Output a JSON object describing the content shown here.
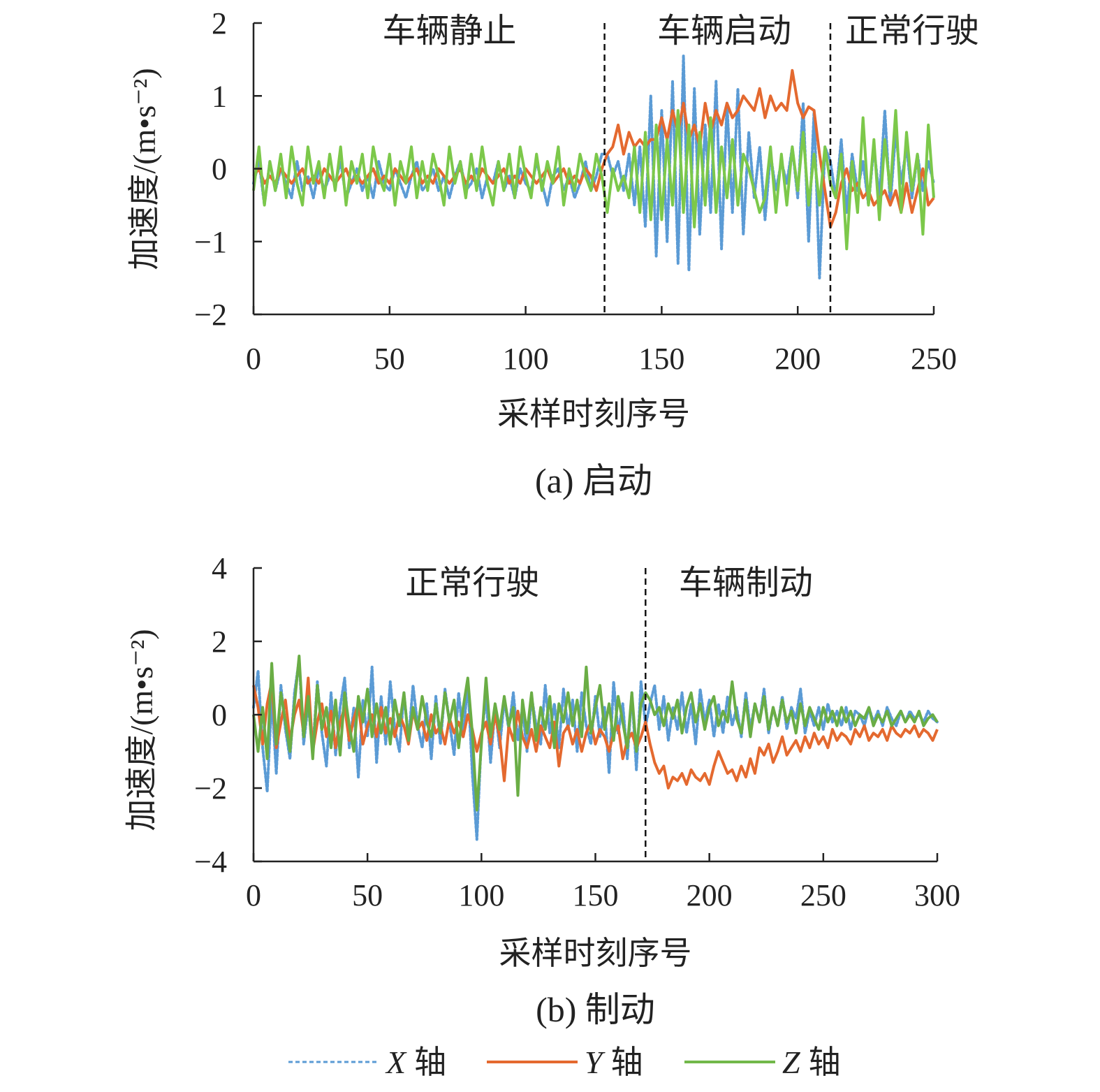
{
  "legend": [
    {
      "name": "X",
      "suffix": "轴",
      "color": "#5b9bd5",
      "dash": true
    },
    {
      "name": "Y",
      "suffix": "轴",
      "color": "#e4692f",
      "dash": false
    },
    {
      "name": "Z",
      "suffix": "轴",
      "color": "#72b84a",
      "dash": false
    }
  ],
  "chart_data": [
    {
      "type": "line",
      "title": "(a) 启动",
      "xlabel": "采样时刻序号",
      "ylabel": "加速度/(m•s⁻²)",
      "xlim": [
        0,
        250
      ],
      "ylim": [
        -2,
        2
      ],
      "xticks": [
        "0",
        "50",
        "100",
        "150",
        "200",
        "250"
      ],
      "yticks": [
        "2",
        "1",
        "0",
        "−1",
        "−2"
      ],
      "x_start": 0,
      "x_step": 2,
      "dividers": [
        129,
        212
      ],
      "phases": [
        {
          "label": "车辆静止",
          "center": 72
        },
        {
          "label": "车辆启动",
          "center": 173
        },
        {
          "label": "正常行驶",
          "center": 242
        }
      ],
      "series": [
        {
          "name": "X 轴",
          "color": "#5b9bd5",
          "values": [
            -0.2,
            0.1,
            -0.5,
            0.1,
            -0.3,
            0,
            -0.2,
            -0.4,
            0.1,
            -0.3,
            -0.1,
            -0.4,
            0,
            -0.3,
            -0.1,
            -0.2,
            0.1,
            -0.4,
            -0.2,
            0,
            -0.3,
            -0.1,
            -0.4,
            0.1,
            -0.2,
            -0.3,
            0,
            -0.2,
            -0.4,
            -0.1,
            0.1,
            -0.3,
            -0.2,
            0,
            -0.3,
            -0.1,
            -0.4,
            -0.1,
            0.1,
            -0.3,
            -0.2,
            0,
            -0.4,
            -0.1,
            -0.2,
            0.1,
            -0.3,
            -0.1,
            -0.4,
            0,
            -0.2,
            -0.3,
            0.1,
            -0.2,
            -0.5,
            -0.1,
            0,
            -0.3,
            -0.1,
            -0.4,
            -0.2,
            0.1,
            -0.3,
            -0.1,
            0.2,
            0.2,
            -0.1,
            0.1,
            -0.3,
            0.2,
            -0.5,
            0.3,
            -0.8,
            1.0,
            -1.2,
            0.8,
            -1.0,
            1.2,
            -1.3,
            1.55,
            -1.4,
            1.1,
            -0.9,
            0.6,
            -0.6,
            1.2,
            -1.1,
            0.9,
            -0.6,
            1.1,
            -0.9,
            0.5,
            -0.4,
            0.3,
            -0.7,
            0.2,
            -0.3,
            0.1,
            -0.2,
            0.3,
            -0.4,
            0.9,
            -1.0,
            0.8,
            -1.5,
            0.3,
            0.1,
            -0.4,
            0.4,
            -0.6,
            0.2,
            -0.3,
            0.1,
            -0.5,
            0.3,
            -0.4,
            0.8,
            -0.5,
            0.5,
            -0.2,
            0.3,
            -0.4,
            0.2,
            -0.3,
            0.1,
            -0.2
          ]
        },
        {
          "name": "Y 轴",
          "color": "#e4692f",
          "values": [
            -0.1,
            0,
            -0.2,
            -0.1,
            -0.2,
            0,
            -0.1,
            -0.2,
            -0.1,
            0,
            -0.2,
            -0.1,
            -0.2,
            0,
            -0.1,
            -0.2,
            -0.1,
            0,
            -0.2,
            -0.1,
            -0.2,
            -0.1,
            0,
            -0.2,
            -0.1,
            -0.2,
            0,
            -0.1,
            -0.2,
            -0.1,
            0,
            -0.2,
            -0.1,
            -0.2,
            0,
            -0.1,
            -0.2,
            -0.1,
            0,
            -0.2,
            -0.1,
            -0.2,
            0,
            -0.1,
            -0.2,
            -0.1,
            0,
            -0.2,
            -0.1,
            -0.2,
            0,
            -0.1,
            -0.2,
            -0.1,
            0,
            -0.2,
            -0.1,
            0,
            -0.2,
            -0.1,
            -0.2,
            0,
            -0.1,
            -0.3,
            0,
            0.2,
            0.3,
            0.6,
            0.2,
            0.5,
            0.3,
            0.4,
            0.3,
            0.4,
            0.4,
            0.7,
            0.4,
            0.8,
            0.5,
            0.9,
            0.4,
            0.6,
            0.3,
            0.9,
            0.5,
            0.8,
            0.6,
            0.9,
            0.7,
            0.8,
            1.0,
            0.9,
            0.8,
            1.1,
            0.7,
            1.0,
            0.8,
            0.9,
            0.8,
            1.35,
            0.9,
            0.7,
            0.85,
            0.8,
            0.2,
            -0.3,
            -0.8,
            -0.6,
            -0.2,
            0,
            -0.3,
            -0.2,
            -0.4,
            -0.3,
            -0.5,
            -0.4,
            -0.3,
            -0.5,
            -0.3,
            -0.6,
            -0.2,
            -0.6,
            -0.3,
            0,
            -0.5,
            -0.4
          ]
        },
        {
          "name": "Z 轴",
          "color": "#7cc84a",
          "values": [
            -0.3,
            0.3,
            -0.5,
            0.1,
            -0.3,
            0.2,
            -0.4,
            0.3,
            -0.2,
            -0.5,
            0.3,
            -0.2,
            0.1,
            -0.4,
            0.2,
            -0.3,
            0.3,
            -0.5,
            0.1,
            -0.2,
            0.2,
            -0.4,
            0.3,
            -0.1,
            -0.3,
            0.2,
            -0.5,
            0.1,
            -0.2,
            0.3,
            -0.4,
            0.1,
            -0.3,
            0.2,
            -0.1,
            -0.5,
            0.3,
            -0.2,
            0.1,
            -0.4,
            0.2,
            -0.3,
            0.3,
            -0.2,
            -0.5,
            0.1,
            -0.3,
            0.2,
            -0.4,
            0.3,
            -0.1,
            -0.4,
            0.2,
            -0.3,
            0.1,
            -0.2,
            0.3,
            -0.5,
            0,
            -0.3,
            0.2,
            -0.1,
            -0.3,
            0.2,
            -0.1,
            -0.6,
            0,
            -0.3,
            -0.1,
            -0.4,
            0.3,
            -0.6,
            0.5,
            -0.7,
            0.6,
            -0.7,
            0.4,
            -0.5,
            0.8,
            -0.6,
            0.6,
            -0.8,
            0.5,
            -0.5,
            0.7,
            -0.6,
            0.3,
            -0.4,
            0.4,
            -0.5,
            0.2,
            0,
            -0.3,
            -0.6,
            -0.4,
            0.3,
            -0.6,
            0.2,
            -0.5,
            0.3,
            -0.3,
            0.5,
            -0.5,
            0.2,
            -0.5,
            0.3,
            -0.2,
            -0.4,
            0.2,
            -1.1,
            0.1,
            -0.6,
            0.7,
            -0.5,
            0.4,
            -0.7,
            0.4,
            -0.3,
            0.8,
            -0.6,
            0.5,
            -0.3,
            0.2,
            -0.9,
            0.6,
            -0.4
          ]
        }
      ]
    },
    {
      "type": "line",
      "title": "(b) 制动",
      "xlabel": "采样时刻序号",
      "ylabel": "加速度/(m•s⁻²)",
      "xlim": [
        0,
        300
      ],
      "ylim": [
        -4,
        4
      ],
      "xticks": [
        "0",
        "50",
        "100",
        "150",
        "200",
        "250",
        "300"
      ],
      "yticks": [
        "4",
        "2",
        "0",
        "−2",
        "−4"
      ],
      "x_start": 0,
      "x_step": 2,
      "dividers": [
        172
      ],
      "phases": [
        {
          "label": "正常行驶",
          "center": 96
        },
        {
          "label": "车辆制动",
          "center": 216
        }
      ],
      "series": [
        {
          "name": "X 轴",
          "color": "#5b9bd5",
          "values": [
            0.2,
            1.2,
            -0.9,
            -2.1,
            0.5,
            -1.6,
            0.8,
            -0.4,
            -1.2,
            0.6,
            1.5,
            -0.8,
            0.3,
            -1.0,
            0.9,
            -0.5,
            -1.4,
            0.6,
            -1.1,
            0.2,
            1.0,
            -0.9,
            0.2,
            -1.7,
            0.4,
            -0.6,
            1.3,
            -1.3,
            0.5,
            -0.8,
            0.9,
            -0.4,
            -1.0,
            0.6,
            -0.7,
            0.8,
            -0.3,
            -0.9,
            0.3,
            -1.2,
            0.5,
            -0.8,
            0.7,
            -0.2,
            -1.1,
            0.6,
            -0.6,
            0.9,
            -1.6,
            -3.4,
            -0.6,
            0.5,
            -1.3,
            0.2,
            -0.9,
            0.4,
            -0.4,
            0.6,
            -0.7,
            0.2,
            -1.0,
            0.5,
            -0.3,
            -0.8,
            0.8,
            -0.5,
            0.3,
            -0.9,
            0.7,
            -0.4,
            0.4,
            -1.0,
            0.6,
            -0.3,
            -0.8,
            0.5,
            -0.6,
            0.2,
            -1.6,
            0.9,
            -0.5,
            0.3,
            -1.2,
            0.6,
            -1.5,
            0.9,
            -0.3,
            0.3,
            0.8,
            -0.4,
            0.5,
            -0.7,
            0.2,
            -0.4,
            0.6,
            -0.5,
            0.3,
            -0.8,
            0.7,
            -0.2,
            0.4,
            -0.6,
            0.3,
            -0.5,
            0.5,
            -0.3,
            0.2,
            -0.6,
            0.6,
            -0.4,
            0.3,
            -0.2,
            0.7,
            -0.5,
            0.2,
            -0.3,
            0.5,
            -0.4,
            0.2,
            -0.1,
            0.7,
            -0.5,
            0.1,
            -0.3,
            0.2,
            -0.4,
            0.3,
            -0.2,
            0.1,
            -0.3,
            0.2,
            -0.4,
            0.1,
            0,
            -0.3,
            0.2,
            -0.2,
            0.1,
            -0.3,
            0.2,
            -0.1,
            -0.3,
            0.1,
            -0.2,
            0.1,
            -0.1,
            0,
            -0.2,
            0.1,
            -0.1,
            -0.2
          ]
        },
        {
          "name": "Y 轴",
          "color": "#e4692f",
          "values": [
            0.8,
            0.2,
            -0.8,
            0.3,
            0.9,
            -0.9,
            -0.2,
            0.4,
            -0.7,
            0,
            0.4,
            -0.5,
            1.0,
            -1.0,
            -0.2,
            0.3,
            -0.6,
            0.1,
            -0.9,
            -0.2,
            0.2,
            -0.7,
            -0.1,
            0.3,
            -0.8,
            -0.3,
            0,
            -0.6,
            0.2,
            -0.5,
            -0.1,
            -0.6,
            0,
            -0.3,
            -0.8,
            0.1,
            -0.4,
            -0.2,
            -0.7,
            0,
            -0.5,
            -0.3,
            -0.8,
            -0.1,
            -0.5,
            -0.2,
            -0.6,
            0,
            -0.4,
            -1.0,
            -0.5,
            -0.2,
            -0.8,
            0,
            -0.6,
            -1.8,
            -0.3,
            -0.7,
            0.1,
            -0.6,
            -0.9,
            -0.4,
            -1.0,
            -0.3,
            -0.6,
            -0.9,
            -0.2,
            -1.4,
            -0.5,
            -0.3,
            -0.8,
            -0.4,
            -1.0,
            -0.5,
            -0.2,
            -0.8,
            -0.4,
            -0.6,
            -1.0,
            -0.5,
            -0.3,
            -1.2,
            -0.7,
            -0.5,
            -0.9,
            -0.6,
            -0.2,
            -0.8,
            -1.3,
            -1.6,
            -1.4,
            -2.0,
            -1.7,
            -1.8,
            -1.6,
            -1.9,
            -1.5,
            -1.7,
            -1.8,
            -1.6,
            -1.9,
            -1.4,
            -1.0,
            -1.3,
            -1.6,
            -1.5,
            -1.8,
            -1.4,
            -1.7,
            -1.2,
            -1.6,
            -0.9,
            -1.1,
            -0.8,
            -1.3,
            -1.0,
            -0.6,
            -1.1,
            -0.9,
            -0.7,
            -1.0,
            -0.6,
            -0.9,
            -0.5,
            -0.8,
            -0.6,
            -0.9,
            -0.4,
            -0.7,
            -0.5,
            -0.6,
            -0.8,
            -0.4,
            -0.6,
            -0.3,
            -0.7,
            -0.5,
            -0.6,
            -0.4,
            -0.7,
            -0.3,
            -0.5,
            -0.6,
            -0.4,
            -0.5,
            -0.3,
            -0.6,
            -0.4,
            -0.5,
            -0.7,
            -0.4
          ]
        },
        {
          "name": "Z 轴",
          "color": "#6aad45",
          "values": [
            0,
            -1.0,
            0.2,
            -1.2,
            1.4,
            -0.8,
            0.6,
            -0.2,
            -1.0,
            0.3,
            1.6,
            -0.6,
            0.5,
            -1.2,
            0.8,
            -0.4,
            0.2,
            -0.9,
            0.4,
            -1.1,
            0.6,
            -0.3,
            -1.0,
            0.5,
            -0.2,
            0.7,
            -0.6,
            0.3,
            -0.5,
            0.2,
            -0.8,
            0.4,
            -0.3,
            0.6,
            -0.7,
            0.2,
            -0.4,
            0.5,
            -0.2,
            -0.6,
            0.3,
            -0.5,
            0.6,
            -0.2,
            0.4,
            -0.9,
            0.2,
            1.0,
            -0.5,
            -2.6,
            -0.8,
            1.0,
            -0.6,
            0.3,
            -0.4,
            0.5,
            -0.3,
            0.2,
            -2.2,
            0.4,
            -0.5,
            0.6,
            -0.7,
            0.2,
            -0.4,
            0.5,
            -0.9,
            0.3,
            -0.2,
            0.6,
            -0.3,
            0.4,
            -0.6,
            1.3,
            -0.5,
            0.2,
            0.8,
            -0.4,
            0.3,
            -0.7,
            0.5,
            -0.2,
            -0.9,
            0.6,
            -1.0,
            0.3,
            0.6,
            0.4,
            0,
            0.2,
            -0.3,
            0.3,
            -0.1,
            0.4,
            -0.5,
            0.2,
            0.6,
            -0.2,
            0.3,
            -0.4,
            0.2,
            0.5,
            -0.3,
            0.1,
            -0.2,
            0.9,
            -0.1,
            -0.5,
            0.4,
            -0.6,
            0.3,
            -0.2,
            0.5,
            -0.4,
            0.2,
            -0.3,
            0.4,
            -0.2,
            0.1,
            -0.5,
            0.3,
            -0.3,
            0.2,
            -0.1,
            -0.4,
            0.2,
            -0.2,
            0.1,
            -0.3,
            0.2,
            -0.2,
            0.1,
            -0.3,
            0,
            -0.1,
            0.2,
            -0.3,
            0,
            -0.2,
            0.1,
            -0.3,
            -0.1,
            0.1,
            -0.2,
            0,
            -0.2,
            0.1,
            -0.3,
            -0.1,
            0,
            -0.2
          ]
        }
      ]
    }
  ]
}
